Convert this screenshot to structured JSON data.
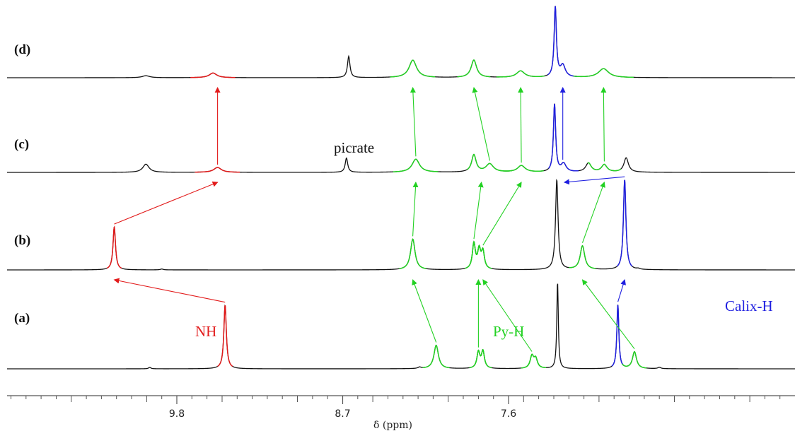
{
  "colors": {
    "trace": "#111111",
    "nh": "#e21a1a",
    "py": "#22d122",
    "calix": "#1f1fe0",
    "axis": "#555555"
  },
  "chart_data": {
    "type": "line",
    "subtype": "stacked 1H NMR spectra",
    "xlabel": "δ (ppm)",
    "x_reversed": true,
    "xlim": [
      10.35,
      6.48
    ],
    "x_tick_labels": [
      {
        "value": 9.8,
        "label": "9.8"
      },
      {
        "value": 8.7,
        "label": "8.7"
      },
      {
        "value": 7.6,
        "label": "7.6"
      }
    ],
    "grid": false,
    "series": [
      {
        "name": "(a)",
        "peaks": [
          {
            "ppm": 9.48,
            "height": 0.95,
            "width": 0.01,
            "group": "nh"
          },
          {
            "ppm": 9.98,
            "height": 0.02,
            "width": 0.01,
            "group": "none"
          },
          {
            "ppm": 8.08,
            "height": 0.35,
            "width": 0.018,
            "group": "py"
          },
          {
            "ppm": 7.8,
            "height": 0.24,
            "width": 0.012,
            "group": "py"
          },
          {
            "ppm": 7.77,
            "height": 0.25,
            "width": 0.012,
            "group": "py"
          },
          {
            "ppm": 7.445,
            "height": 0.18,
            "width": 0.014,
            "group": "py"
          },
          {
            "ppm": 7.42,
            "height": 0.14,
            "width": 0.014,
            "group": "py"
          },
          {
            "ppm": 7.275,
            "height": 1.3,
            "width": 0.006,
            "group": "none"
          },
          {
            "ppm": 6.875,
            "height": 0.95,
            "width": 0.008,
            "group": "calix"
          },
          {
            "ppm": 6.765,
            "height": 0.25,
            "width": 0.016,
            "group": "py"
          },
          {
            "ppm": 8.19,
            "height": 0.02,
            "width": 0.012,
            "group": "none"
          },
          {
            "ppm": 6.6,
            "height": 0.02,
            "width": 0.012,
            "group": "none"
          }
        ]
      },
      {
        "name": "(b)",
        "peaks": [
          {
            "ppm": 10.215,
            "height": 1.05,
            "width": 0.01,
            "group": "nh"
          },
          {
            "ppm": 9.9,
            "height": 0.02,
            "width": 0.012,
            "group": "none"
          },
          {
            "ppm": 8.235,
            "height": 0.75,
            "width": 0.018,
            "group": "py"
          },
          {
            "ppm": 7.83,
            "height": 0.62,
            "width": 0.012,
            "group": "py"
          },
          {
            "ppm": 7.795,
            "height": 0.45,
            "width": 0.012,
            "group": "py"
          },
          {
            "ppm": 7.77,
            "height": 0.42,
            "width": 0.012,
            "group": "py"
          },
          {
            "ppm": 7.28,
            "height": 2.2,
            "width": 0.01,
            "group": "none"
          },
          {
            "ppm": 7.11,
            "height": 0.58,
            "width": 0.018,
            "group": "py"
          },
          {
            "ppm": 6.83,
            "height": 2.2,
            "width": 0.01,
            "group": "calix"
          },
          {
            "ppm": 6.74,
            "height": 0.02,
            "width": 0.012,
            "group": "none"
          }
        ]
      },
      {
        "name": "(c)",
        "peaks": [
          {
            "ppm": 10.005,
            "height": 0.2,
            "width": 0.025,
            "group": "none"
          },
          {
            "ppm": 9.53,
            "height": 0.12,
            "width": 0.03,
            "group": "nh"
          },
          {
            "ppm": 8.675,
            "height": 0.35,
            "width": 0.01,
            "group": "none"
          },
          {
            "ppm": 8.215,
            "height": 0.32,
            "width": 0.03,
            "group": "py"
          },
          {
            "ppm": 7.83,
            "height": 0.42,
            "width": 0.018,
            "group": "none"
          },
          {
            "ppm": 7.725,
            "height": 0.2,
            "width": 0.03,
            "group": "py"
          },
          {
            "ppm": 7.515,
            "height": 0.16,
            "width": 0.03,
            "group": "py"
          },
          {
            "ppm": 7.295,
            "height": 1.65,
            "width": 0.009,
            "group": "none"
          },
          {
            "ppm": 7.235,
            "height": 0.2,
            "width": 0.02,
            "group": "calix"
          },
          {
            "ppm": 7.07,
            "height": 0.22,
            "width": 0.022,
            "group": "none"
          },
          {
            "ppm": 6.965,
            "height": 0.18,
            "width": 0.022,
            "group": "py"
          },
          {
            "ppm": 6.82,
            "height": 0.35,
            "width": 0.018,
            "group": "none"
          }
        ]
      },
      {
        "name": "(d)",
        "peaks": [
          {
            "ppm": 10.005,
            "height": 0.05,
            "width": 0.03,
            "group": "none"
          },
          {
            "ppm": 9.56,
            "height": 0.12,
            "width": 0.03,
            "group": "nh"
          },
          {
            "ppm": 8.66,
            "height": 0.55,
            "width": 0.01,
            "group": "none"
          },
          {
            "ppm": 8.235,
            "height": 0.45,
            "width": 0.03,
            "group": "py"
          },
          {
            "ppm": 7.83,
            "height": 0.45,
            "width": 0.022,
            "group": "py"
          },
          {
            "ppm": 7.52,
            "height": 0.17,
            "width": 0.032,
            "group": "py"
          },
          {
            "ppm": 7.29,
            "height": 1.8,
            "width": 0.009,
            "group": "none"
          },
          {
            "ppm": 7.24,
            "height": 0.3,
            "width": 0.02,
            "group": "calix"
          },
          {
            "ppm": 6.97,
            "height": 0.23,
            "width": 0.04,
            "group": "py"
          }
        ]
      }
    ],
    "annotations": [
      {
        "text": "NH",
        "group": "nh"
      },
      {
        "text": "Py-H",
        "group": "py"
      },
      {
        "text": "Calix-H",
        "group": "calix"
      },
      {
        "text": "picrate",
        "group": "none"
      }
    ],
    "shift_arrows": [
      {
        "group": "nh",
        "from": {
          "series": "(a)",
          "ppm": 9.48
        },
        "to": {
          "series": "(b)",
          "ppm": 10.215
        }
      },
      {
        "group": "nh",
        "from": {
          "series": "(b)",
          "ppm": 10.215
        },
        "to": {
          "series": "(c)",
          "ppm": 9.53
        }
      },
      {
        "group": "nh",
        "from": {
          "series": "(c)",
          "ppm": 9.53
        },
        "to": {
          "series": "(d)",
          "ppm": 9.53
        }
      },
      {
        "group": "py",
        "from": {
          "series": "(a)",
          "ppm": 8.08
        },
        "to": {
          "series": "(b)",
          "ppm": 8.235
        }
      },
      {
        "group": "py",
        "from": {
          "series": "(a)",
          "ppm": 7.8
        },
        "to": {
          "series": "(b)",
          "ppm": 7.8
        }
      },
      {
        "group": "py",
        "from": {
          "series": "(a)",
          "ppm": 7.445
        },
        "to": {
          "series": "(b)",
          "ppm": 7.77
        }
      },
      {
        "group": "py",
        "from": {
          "series": "(a)",
          "ppm": 6.765
        },
        "to": {
          "series": "(b)",
          "ppm": 7.11
        }
      },
      {
        "group": "calix",
        "from": {
          "series": "(a)",
          "ppm": 6.875
        },
        "to": {
          "series": "(b)",
          "ppm": 6.83
        }
      },
      {
        "group": "py",
        "from": {
          "series": "(b)",
          "ppm": 8.235
        },
        "to": {
          "series": "(c)",
          "ppm": 8.215
        }
      },
      {
        "group": "py",
        "from": {
          "series": "(b)",
          "ppm": 7.83
        },
        "to": {
          "series": "(c)",
          "ppm": 7.78
        }
      },
      {
        "group": "py",
        "from": {
          "series": "(b)",
          "ppm": 7.77
        },
        "to": {
          "series": "(c)",
          "ppm": 7.515
        }
      },
      {
        "group": "py",
        "from": {
          "series": "(b)",
          "ppm": 7.11
        },
        "to": {
          "series": "(c)",
          "ppm": 6.965
        }
      },
      {
        "group": "calix",
        "from": {
          "series": "(b)",
          "ppm": 6.83
        },
        "to": {
          "series": "(c)",
          "ppm": 7.23
        }
      },
      {
        "group": "py",
        "from": {
          "series": "(c)",
          "ppm": 8.215
        },
        "to": {
          "series": "(d)",
          "ppm": 8.235
        }
      },
      {
        "group": "py",
        "from": {
          "series": "(c)",
          "ppm": 7.725
        },
        "to": {
          "series": "(d)",
          "ppm": 7.83
        }
      },
      {
        "group": "py",
        "from": {
          "series": "(c)",
          "ppm": 7.515
        },
        "to": {
          "series": "(d)",
          "ppm": 7.52
        }
      },
      {
        "group": "py",
        "from": {
          "series": "(c)",
          "ppm": 6.965
        },
        "to": {
          "series": "(d)",
          "ppm": 6.97
        }
      },
      {
        "group": "calix",
        "from": {
          "series": "(c)",
          "ppm": 7.24
        },
        "to": {
          "series": "(d)",
          "ppm": 7.24
        }
      }
    ]
  }
}
